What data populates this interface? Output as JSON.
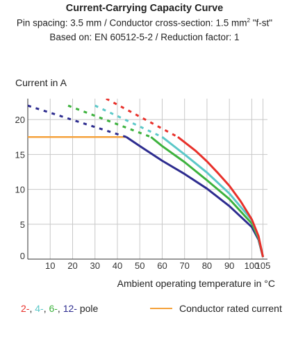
{
  "header": {
    "title": "Current-Carrying Capacity Curve",
    "pin_spacing_text": "Pin spacing: 3.5 mm / Conductor cross-section: 1.5 mm",
    "superscript": "2",
    "fst_text": " \"f-st\"",
    "based_on": "Based on: EN 60512-5-2 / Reduction factor: 1"
  },
  "legend": {
    "poles": [
      {
        "label": "2-",
        "color": "#e8302a"
      },
      {
        "label": "4-",
        "color": "#5bc8c8"
      },
      {
        "label": "6-",
        "color": "#3db23d"
      },
      {
        "label": "12-",
        "color": "#2d2c8f"
      }
    ],
    "pole_suffix": "pole",
    "rated_label": "Conductor rated current",
    "rated_color": "#f5a23c"
  },
  "chart_data": {
    "type": "line",
    "title": "Current-Carrying Capacity Curve",
    "ylabel": "Current in A",
    "xlabel": "Ambient operating temperature in °C",
    "xlim": [
      0,
      107
    ],
    "ylim": [
      0,
      23
    ],
    "xticks": [
      10,
      20,
      30,
      40,
      50,
      60,
      70,
      80,
      90,
      100,
      105
    ],
    "yticks": [
      0,
      5,
      10,
      15,
      20
    ],
    "grid": true,
    "series": [
      {
        "name": "2-",
        "color": "#e8302a",
        "dashed_x": [
          35,
          67
        ],
        "dashed_y": [
          23,
          17.5
        ],
        "solid_x": [
          67,
          75,
          80,
          85,
          90,
          95,
          100,
          103,
          105
        ],
        "solid_y": [
          17.5,
          15.5,
          14,
          12.3,
          10.5,
          8.3,
          5.7,
          3.3,
          0.3
        ]
      },
      {
        "name": "4-",
        "color": "#5bc8c8",
        "dashed_x": [
          30,
          60
        ],
        "dashed_y": [
          22,
          17.5
        ],
        "solid_x": [
          60,
          70,
          80,
          90,
          100,
          103,
          105
        ],
        "solid_y": [
          17.5,
          15,
          12.4,
          9.4,
          5.6,
          3.2,
          0.3
        ]
      },
      {
        "name": "6-",
        "color": "#3db23d",
        "dashed_x": [
          18,
          55
        ],
        "dashed_y": [
          22,
          17.5
        ],
        "solid_x": [
          55,
          60,
          70,
          80,
          90,
          100,
          103,
          105
        ],
        "solid_y": [
          17.5,
          16.2,
          13.9,
          11.3,
          8.6,
          5.1,
          3,
          0.3
        ]
      },
      {
        "name": "12-",
        "color": "#2d2c8f",
        "dashed_x": [
          0,
          44
        ],
        "dashed_y": [
          22,
          17.5
        ],
        "solid_x": [
          44,
          50,
          60,
          70,
          80,
          90,
          100,
          103,
          105
        ],
        "solid_y": [
          17.5,
          16.2,
          14.1,
          12.2,
          10.1,
          7.6,
          4.6,
          2.8,
          0.3
        ]
      },
      {
        "name": "Conductor rated current",
        "color": "#f5a23c",
        "x": [
          0,
          44
        ],
        "y": [
          17.5,
          17.5
        ]
      }
    ]
  }
}
